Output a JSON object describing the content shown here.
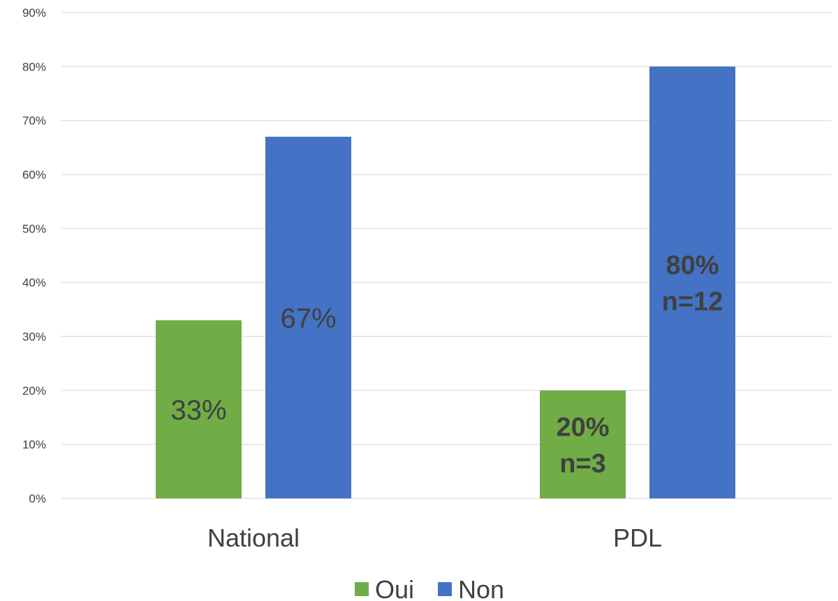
{
  "chart_data": {
    "type": "bar",
    "title": "",
    "xlabel": "",
    "ylabel": "",
    "categories": [
      "National",
      "PDL"
    ],
    "ylim": [
      0,
      90
    ],
    "y_tick_step": 10,
    "y_tick_labels": [
      "0%",
      "10%",
      "20%",
      "30%",
      "40%",
      "50%",
      "60%",
      "70%",
      "80%",
      "90%"
    ],
    "grid": true,
    "legend_position": "bottom",
    "series": [
      {
        "name": "Oui",
        "color": "#70AD47",
        "values": [
          33,
          20
        ],
        "data_labels": [
          [
            "33%"
          ],
          [
            "20%",
            "n=3"
          ]
        ]
      },
      {
        "name": "Non",
        "color": "#4472C4",
        "values": [
          67,
          80
        ],
        "data_labels": [
          [
            "67%"
          ],
          [
            "80%",
            "n=12"
          ]
        ]
      }
    ]
  }
}
